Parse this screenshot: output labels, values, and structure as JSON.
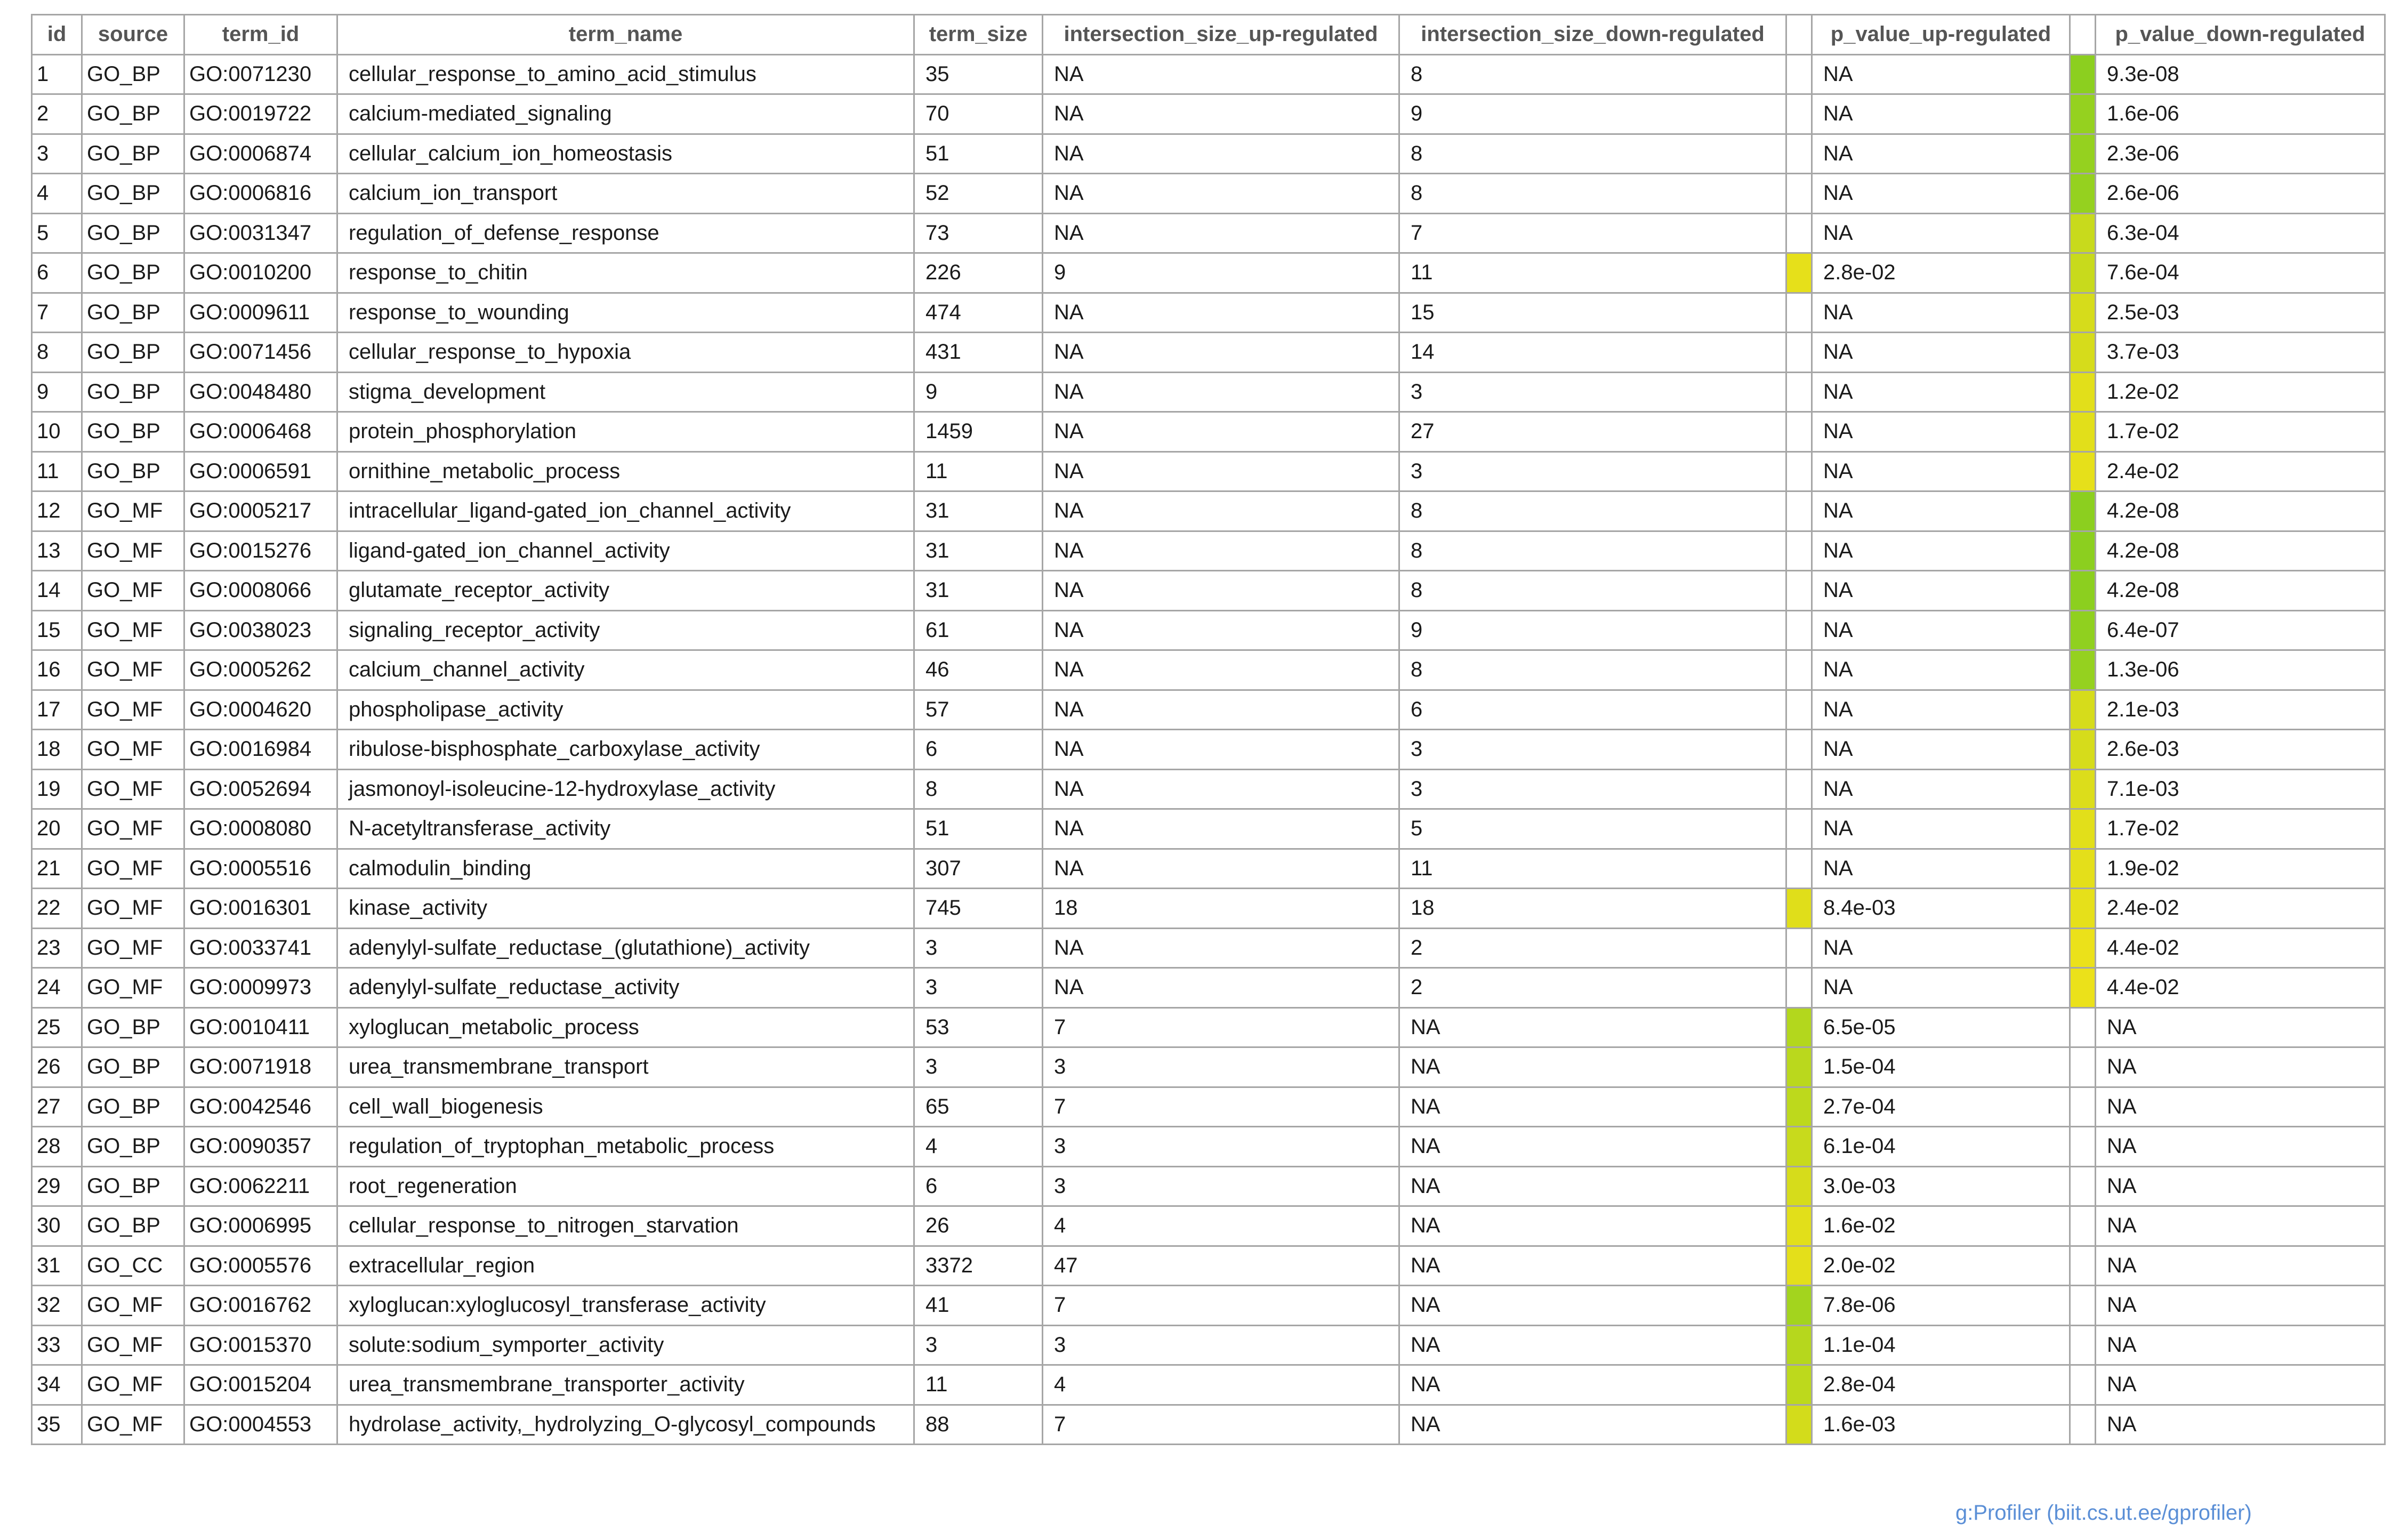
{
  "table": {
    "headers": [
      "id",
      "source",
      "term_id",
      "term_name",
      "term_size",
      "intersection_size_up-regulated",
      "intersection_size_down-regulated",
      "",
      "p_value_up-regulated",
      "",
      "p_value_down-regulated"
    ],
    "rows": [
      {
        "id": "1",
        "source": "GO_BP",
        "term_id": "GO:0071230",
        "term_name": "cellular_response_to_amino_acid_stimulus",
        "term_size": "35",
        "int_up": "NA",
        "int_down": "8",
        "up_color": "",
        "p_up": "NA",
        "down_color": "#8ccf1f",
        "p_down": "9.3e-08"
      },
      {
        "id": "2",
        "source": "GO_BP",
        "term_id": "GO:0019722",
        "term_name": "calcium-mediated_signaling",
        "term_size": "70",
        "int_up": "NA",
        "int_down": "9",
        "up_color": "",
        "p_up": "NA",
        "down_color": "#95d11f",
        "p_down": "1.6e-06"
      },
      {
        "id": "3",
        "source": "GO_BP",
        "term_id": "GO:0006874",
        "term_name": "cellular_calcium_ion_homeostasis",
        "term_size": "51",
        "int_up": "NA",
        "int_down": "8",
        "up_color": "",
        "p_up": "NA",
        "down_color": "#95d11f",
        "p_down": "2.3e-06"
      },
      {
        "id": "4",
        "source": "GO_BP",
        "term_id": "GO:0006816",
        "term_name": "calcium_ion_transport",
        "term_size": "52",
        "int_up": "NA",
        "int_down": "8",
        "up_color": "",
        "p_up": "NA",
        "down_color": "#95d11f",
        "p_down": "2.6e-06"
      },
      {
        "id": "5",
        "source": "GO_BP",
        "term_id": "GO:0031347",
        "term_name": "regulation_of_defense_response",
        "term_size": "73",
        "int_up": "NA",
        "int_down": "7",
        "up_color": "",
        "p_up": "NA",
        "down_color": "#c8da1c",
        "p_down": "6.3e-04"
      },
      {
        "id": "6",
        "source": "GO_BP",
        "term_id": "GO:0010200",
        "term_name": "response_to_chitin",
        "term_size": "226",
        "int_up": "9",
        "int_down": "11",
        "up_color": "#e6e01a",
        "p_up": "2.8e-02",
        "down_color": "#c8da1c",
        "p_down": "7.6e-04"
      },
      {
        "id": "7",
        "source": "GO_BP",
        "term_id": "GO:0009611",
        "term_name": "response_to_wounding",
        "term_size": "474",
        "int_up": "NA",
        "int_down": "15",
        "up_color": "",
        "p_up": "NA",
        "down_color": "#d6dc1b",
        "p_down": "2.5e-03"
      },
      {
        "id": "8",
        "source": "GO_BP",
        "term_id": "GO:0071456",
        "term_name": "cellular_response_to_hypoxia",
        "term_size": "431",
        "int_up": "NA",
        "int_down": "14",
        "up_color": "",
        "p_up": "NA",
        "down_color": "#d6dc1b",
        "p_down": "3.7e-03"
      },
      {
        "id": "9",
        "source": "GO_BP",
        "term_id": "GO:0048480",
        "term_name": "stigma_development",
        "term_size": "9",
        "int_up": "NA",
        "int_down": "3",
        "up_color": "",
        "p_up": "NA",
        "down_color": "#e2df1a",
        "p_down": "1.2e-02"
      },
      {
        "id": "10",
        "source": "GO_BP",
        "term_id": "GO:0006468",
        "term_name": "protein_phosphorylation",
        "term_size": "1459",
        "int_up": "NA",
        "int_down": "27",
        "up_color": "",
        "p_up": "NA",
        "down_color": "#e2df1a",
        "p_down": "1.7e-02"
      },
      {
        "id": "11",
        "source": "GO_BP",
        "term_id": "GO:0006591",
        "term_name": "ornithine_metabolic_process",
        "term_size": "11",
        "int_up": "NA",
        "int_down": "3",
        "up_color": "",
        "p_up": "NA",
        "down_color": "#e6e01a",
        "p_down": "2.4e-02"
      },
      {
        "id": "12",
        "source": "GO_MF",
        "term_id": "GO:0005217",
        "term_name": "intracellular_ligand-gated_ion_channel_activity",
        "term_size": "31",
        "int_up": "NA",
        "int_down": "8",
        "up_color": "",
        "p_up": "NA",
        "down_color": "#8ccf1f",
        "p_down": "4.2e-08"
      },
      {
        "id": "13",
        "source": "GO_MF",
        "term_id": "GO:0015276",
        "term_name": "ligand-gated_ion_channel_activity",
        "term_size": "31",
        "int_up": "NA",
        "int_down": "8",
        "up_color": "",
        "p_up": "NA",
        "down_color": "#8ccf1f",
        "p_down": "4.2e-08"
      },
      {
        "id": "14",
        "source": "GO_MF",
        "term_id": "GO:0008066",
        "term_name": "glutamate_receptor_activity",
        "term_size": "31",
        "int_up": "NA",
        "int_down": "8",
        "up_color": "",
        "p_up": "NA",
        "down_color": "#8ccf1f",
        "p_down": "4.2e-08"
      },
      {
        "id": "15",
        "source": "GO_MF",
        "term_id": "GO:0038023",
        "term_name": "signaling_receptor_activity",
        "term_size": "61",
        "int_up": "NA",
        "int_down": "9",
        "up_color": "",
        "p_up": "NA",
        "down_color": "#90d01f",
        "p_down": "6.4e-07"
      },
      {
        "id": "16",
        "source": "GO_MF",
        "term_id": "GO:0005262",
        "term_name": "calcium_channel_activity",
        "term_size": "46",
        "int_up": "NA",
        "int_down": "8",
        "up_color": "",
        "p_up": "NA",
        "down_color": "#95d11f",
        "p_down": "1.3e-06"
      },
      {
        "id": "17",
        "source": "GO_MF",
        "term_id": "GO:0004620",
        "term_name": "phospholipase_activity",
        "term_size": "57",
        "int_up": "NA",
        "int_down": "6",
        "up_color": "",
        "p_up": "NA",
        "down_color": "#d6dc1b",
        "p_down": "2.1e-03"
      },
      {
        "id": "18",
        "source": "GO_MF",
        "term_id": "GO:0016984",
        "term_name": "ribulose-bisphosphate_carboxylase_activity",
        "term_size": "6",
        "int_up": "NA",
        "int_down": "3",
        "up_color": "",
        "p_up": "NA",
        "down_color": "#d6dc1b",
        "p_down": "2.6e-03"
      },
      {
        "id": "19",
        "source": "GO_MF",
        "term_id": "GO:0052694",
        "term_name": "jasmonoyl-isoleucine-12-hydroxylase_activity",
        "term_size": "8",
        "int_up": "NA",
        "int_down": "3",
        "up_color": "",
        "p_up": "NA",
        "down_color": "#dcdd1b",
        "p_down": "7.1e-03"
      },
      {
        "id": "20",
        "source": "GO_MF",
        "term_id": "GO:0008080",
        "term_name": "N-acetyltransferase_activity",
        "term_size": "51",
        "int_up": "NA",
        "int_down": "5",
        "up_color": "",
        "p_up": "NA",
        "down_color": "#e2df1a",
        "p_down": "1.7e-02"
      },
      {
        "id": "21",
        "source": "GO_MF",
        "term_id": "GO:0005516",
        "term_name": "calmodulin_binding",
        "term_size": "307",
        "int_up": "NA",
        "int_down": "11",
        "up_color": "",
        "p_up": "NA",
        "down_color": "#e4df1a",
        "p_down": "1.9e-02"
      },
      {
        "id": "22",
        "source": "GO_MF",
        "term_id": "GO:0016301",
        "term_name": "kinase_activity",
        "term_size": "745",
        "int_up": "18",
        "int_down": "18",
        "up_color": "#e0de1a",
        "p_up": "8.4e-03",
        "down_color": "#e6e01a",
        "p_down": "2.4e-02"
      },
      {
        "id": "23",
        "source": "GO_MF",
        "term_id": "GO:0033741",
        "term_name": "adenylyl-sulfate_reductase_(glutathione)_activity",
        "term_size": "3",
        "int_up": "NA",
        "int_down": "2",
        "up_color": "",
        "p_up": "NA",
        "down_color": "#ebe11a",
        "p_down": "4.4e-02"
      },
      {
        "id": "24",
        "source": "GO_MF",
        "term_id": "GO:0009973",
        "term_name": "adenylyl-sulfate_reductase_activity",
        "term_size": "3",
        "int_up": "NA",
        "int_down": "2",
        "up_color": "",
        "p_up": "NA",
        "down_color": "#ebe11a",
        "p_down": "4.4e-02"
      },
      {
        "id": "25",
        "source": "GO_BP",
        "term_id": "GO:0010411",
        "term_name": "xyloglucan_metabolic_process",
        "term_size": "53",
        "int_up": "7",
        "int_down": "NA",
        "up_color": "#b3d71d",
        "p_up": "6.5e-05",
        "down_color": "",
        "p_down": "NA"
      },
      {
        "id": "26",
        "source": "GO_BP",
        "term_id": "GO:0071918",
        "term_name": "urea_transmembrane_transport",
        "term_size": "3",
        "int_up": "3",
        "int_down": "NA",
        "up_color": "#bad81d",
        "p_up": "1.5e-04",
        "down_color": "",
        "p_down": "NA"
      },
      {
        "id": "27",
        "source": "GO_BP",
        "term_id": "GO:0042546",
        "term_name": "cell_wall_biogenesis",
        "term_size": "65",
        "int_up": "7",
        "int_down": "NA",
        "up_color": "#bdd91c",
        "p_up": "2.7e-04",
        "down_color": "",
        "p_down": "NA"
      },
      {
        "id": "28",
        "source": "GO_BP",
        "term_id": "GO:0090357",
        "term_name": "regulation_of_tryptophan_metabolic_process",
        "term_size": "4",
        "int_up": "3",
        "int_down": "NA",
        "up_color": "#c8da1c",
        "p_up": "6.1e-04",
        "down_color": "",
        "p_down": "NA"
      },
      {
        "id": "29",
        "source": "GO_BP",
        "term_id": "GO:0062211",
        "term_name": "root_regeneration",
        "term_size": "6",
        "int_up": "3",
        "int_down": "NA",
        "up_color": "#d6dc1b",
        "p_up": "3.0e-03",
        "down_color": "",
        "p_down": "NA"
      },
      {
        "id": "30",
        "source": "GO_BP",
        "term_id": "GO:0006995",
        "term_name": "cellular_response_to_nitrogen_starvation",
        "term_size": "26",
        "int_up": "4",
        "int_down": "NA",
        "up_color": "#e2df1a",
        "p_up": "1.6e-02",
        "down_color": "",
        "p_down": "NA"
      },
      {
        "id": "31",
        "source": "GO_CC",
        "term_id": "GO:0005576",
        "term_name": "extracellular_region",
        "term_size": "3372",
        "int_up": "47",
        "int_down": "NA",
        "up_color": "#e4df1a",
        "p_up": "2.0e-02",
        "down_color": "",
        "p_down": "NA"
      },
      {
        "id": "32",
        "source": "GO_MF",
        "term_id": "GO:0016762",
        "term_name": "xyloglucan:xyloglucosyl_transferase_activity",
        "term_size": "41",
        "int_up": "7",
        "int_down": "NA",
        "up_color": "#a3d41e",
        "p_up": "7.8e-06",
        "down_color": "",
        "p_down": "NA"
      },
      {
        "id": "33",
        "source": "GO_MF",
        "term_id": "GO:0015370",
        "term_name": "solute:sodium_symporter_activity",
        "term_size": "3",
        "int_up": "3",
        "int_down": "NA",
        "up_color": "#b6d71d",
        "p_up": "1.1e-04",
        "down_color": "",
        "p_down": "NA"
      },
      {
        "id": "34",
        "source": "GO_MF",
        "term_id": "GO:0015204",
        "term_name": "urea_transmembrane_transporter_activity",
        "term_size": "11",
        "int_up": "4",
        "int_down": "NA",
        "up_color": "#bdd91c",
        "p_up": "2.8e-04",
        "down_color": "",
        "p_down": "NA"
      },
      {
        "id": "35",
        "source": "GO_MF",
        "term_id": "GO:0004553",
        "term_name": "hydrolase_activity,_hydrolyzing_O-glycosyl_compounds",
        "term_size": "88",
        "int_up": "7",
        "int_down": "NA",
        "up_color": "#d3dc1b",
        "p_up": "1.6e-03",
        "down_color": "",
        "p_down": "NA"
      }
    ]
  },
  "footer": {
    "text": "g:Profiler (biit.cs.ut.ee/gprofiler)"
  }
}
